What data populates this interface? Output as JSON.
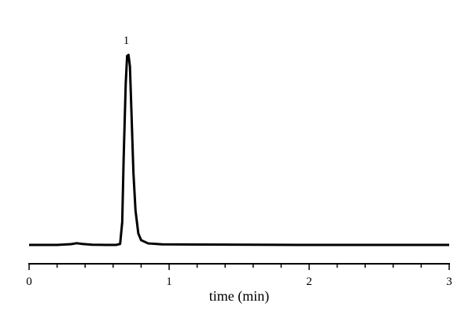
{
  "chart_data": {
    "type": "line",
    "title": "",
    "xlabel": "time (min)",
    "ylabel": "",
    "xlim": [
      0,
      3
    ],
    "ylim": [
      0,
      1.1
    ],
    "x_ticks": [
      "0",
      "1",
      "2",
      "3"
    ],
    "x_minor_step": 0.2,
    "grid": false,
    "line_color": "#000000",
    "series": [
      {
        "x": [
          0.0,
          0.1,
          0.2,
          0.3,
          0.34,
          0.38,
          0.45,
          0.55,
          0.62,
          0.65,
          0.665,
          0.675,
          0.69,
          0.7,
          0.71,
          0.72,
          0.73,
          0.745,
          0.76,
          0.78,
          0.8,
          0.85,
          0.95,
          1.2,
          1.6,
          2.0,
          2.5,
          3.0
        ],
        "y": [
          0.0,
          0.0,
          0.0,
          0.004,
          0.009,
          0.005,
          0.001,
          0.0,
          0.0,
          0.005,
          0.12,
          0.45,
          0.85,
          0.995,
          1.0,
          0.94,
          0.72,
          0.38,
          0.18,
          0.06,
          0.025,
          0.008,
          0.003,
          0.002,
          0.001,
          0.0,
          0.0,
          0.0
        ]
      }
    ],
    "annotations": [
      {
        "text": "1",
        "x": 0.705,
        "y": 1.0
      }
    ]
  }
}
